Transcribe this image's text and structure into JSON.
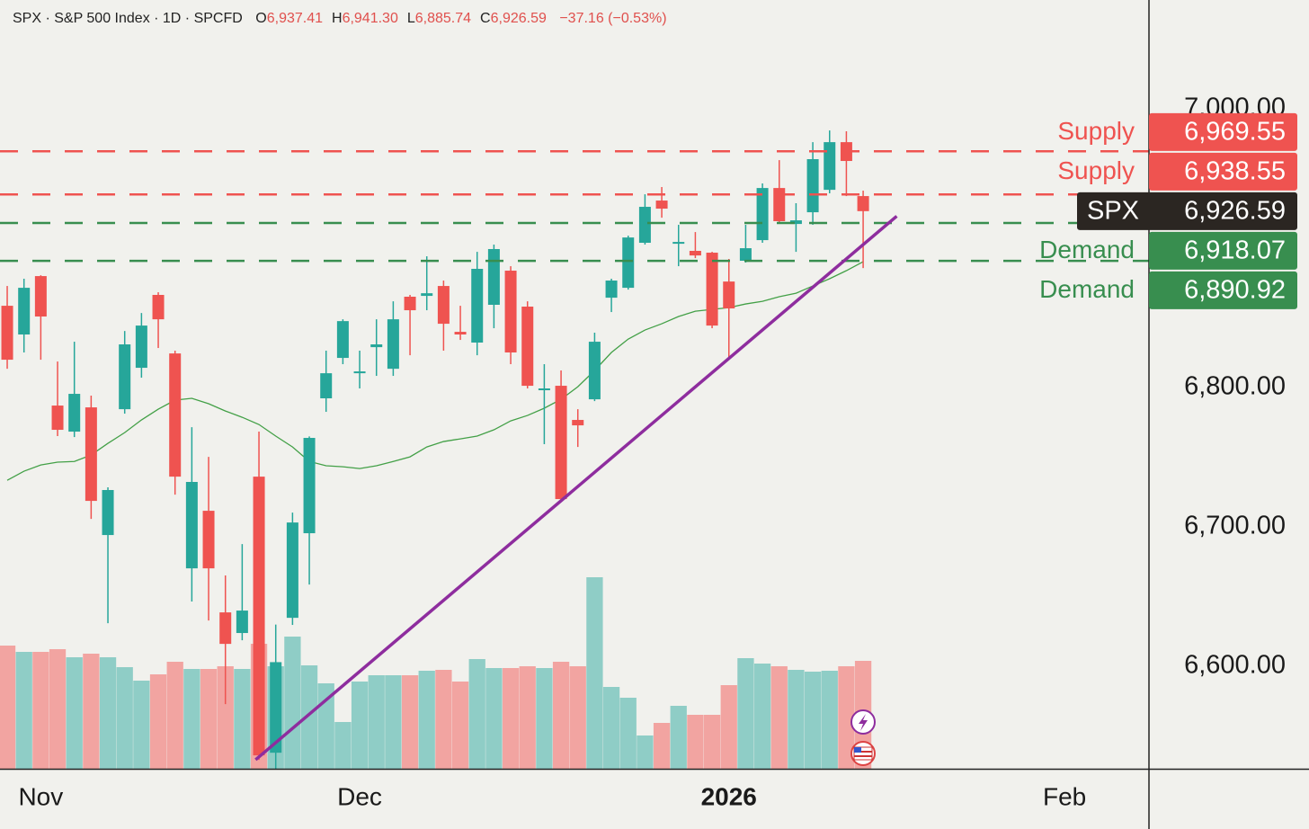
{
  "header": {
    "title": "SPX · S&P 500 Index · 1D · SPCFD",
    "fields": [
      {
        "key": "O",
        "value": "6,937.41"
      },
      {
        "key": "H",
        "value": "6,941.30"
      },
      {
        "key": "L",
        "value": "6,885.74"
      },
      {
        "key": "C",
        "value": "6,926.59"
      }
    ],
    "change": "−37.16 (−0.53%)"
  },
  "chart_data": {
    "type": "candlestick",
    "open": [
      6858.7,
      6838.1,
      6880.0,
      6787.1,
      6768.4,
      6785.8,
      6694.2,
      6784.5,
      6814.2,
      6866.5,
      6824.5,
      6670.3,
      6711.6,
      6638.7,
      6623.9,
      6736.1,
      6538.0,
      6634.8,
      6695.5,
      6792.3,
      6821.3,
      6810.3,
      6829.0,
      6813.5,
      6865.2,
      6865.8,
      6872.9,
      6840.0,
      6832.3,
      6859.4,
      6883.9,
      6858.1,
      6798.1,
      6801.3,
      6776.8,
      6791.6,
      6864.5,
      6871.6,
      6903.9,
      6934.2,
      6903.2,
      6898.1,
      6896.8,
      6876.1,
      6891.0,
      6905.8,
      6943.2,
      6917.4,
      6925.8,
      6941.9,
      6976.1,
      6937.41
    ],
    "high": [
      6872.9,
      6878.1,
      6880.6,
      6818.7,
      6832.9,
      6794.2,
      6728.4,
      6840.6,
      6853.5,
      6868.4,
      6826.5,
      6771.6,
      6750.3,
      6665.2,
      6687.7,
      6768.4,
      6630.0,
      6710.3,
      6765.0,
      6826.5,
      6849.0,
      6826.5,
      6849.0,
      6861.9,
      6866.5,
      6894.2,
      6876.8,
      6858.7,
      6897.4,
      6902.6,
      6887.1,
      6861.9,
      6816.8,
      6812.3,
      6784.5,
      6839.4,
      6878.1,
      6909.0,
      6938.7,
      6943.9,
      6916.8,
      6911.6,
      6897.4,
      6892.3,
      6916.8,
      6946.5,
      6963.2,
      6932.3,
      6976.1,
      6984.5,
      6983.9,
      6941.3
    ],
    "low": [
      6813.5,
      6825.2,
      6820.0,
      6765.2,
      6764.5,
      6705.8,
      6630.9,
      6781.3,
      6807.1,
      6828.4,
      6723.2,
      6646.5,
      6632.9,
      6572.9,
      6618.7,
      6532.9,
      6521.0,
      6629.7,
      6658.7,
      6782.6,
      6816.8,
      6799.4,
      6808.4,
      6808.4,
      6823.2,
      6855.5,
      6826.5,
      6834.2,
      6823.2,
      6842.6,
      6816.8,
      6799.4,
      6759.4,
      6718.1,
      6757.4,
      6790.3,
      6854.2,
      6870.3,
      6902.6,
      6921.9,
      6887.1,
      6892.9,
      6842.6,
      6821.3,
      6889.7,
      6903.9,
      6918.1,
      6897.4,
      6916.8,
      6939.4,
      6937.4,
      6885.74
    ],
    "close": [
      6820.0,
      6871.6,
      6851.0,
      6769.7,
      6795.5,
      6718.7,
      6726.5,
      6831.0,
      6844.5,
      6849.0,
      6736.1,
      6732.3,
      6670.3,
      6616.1,
      6640.0,
      6536.1,
      6603.0,
      6703.2,
      6763.9,
      6810.3,
      6847.7,
      6811.6,
      6831.0,
      6849.0,
      6855.5,
      6867.7,
      6845.8,
      6838.1,
      6885.2,
      6899.4,
      6825.2,
      6801.3,
      6799.4,
      6720.0,
      6772.9,
      6832.9,
      6876.8,
      6907.7,
      6929.7,
      6928.4,
      6904.5,
      6894.8,
      6844.5,
      6856.8,
      6900.0,
      6943.2,
      6919.4,
      6920.0,
      6963.9,
      6976.1,
      6962.6,
      6926.59
    ],
    "volume": [
      54.8,
      52,
      52,
      53.2,
      49.6,
      51.2,
      49.6,
      45.2,
      39.2,
      42,
      47.6,
      44.4,
      44.4,
      45.6,
      44.4,
      55.6,
      45.6,
      58.8,
      46,
      38,
      20.8,
      38.8,
      41.6,
      41.6,
      41.6,
      43.6,
      44,
      38.8,
      48.8,
      44.8,
      44.8,
      45.6,
      44.8,
      47.6,
      45.6,
      85.2,
      36.4,
      31.6,
      14.8,
      20.4,
      28,
      24,
      24,
      37.2,
      49.2,
      46.8,
      45.6,
      44,
      43.2,
      43.6,
      45.6,
      48
    ],
    "volume_lim": [
      0,
      100
    ],
    "ma": [
      6733.5,
      6740,
      6744.5,
      6746.5,
      6747,
      6751.6,
      6760,
      6767.7,
      6776.8,
      6784.5,
      6791,
      6792.3,
      6788.4,
      6783.2,
      6778.7,
      6773.5,
      6765.2,
      6757.4,
      6747,
      6743.9,
      6743.2,
      6741.9,
      6743.9,
      6747,
      6750.3,
      6757.4,
      6761.3,
      6763.2,
      6765.2,
      6769.7,
      6776.1,
      6780,
      6785.2,
      6791.6,
      6800.6,
      6812.3,
      6825.2,
      6834.8,
      6841.3,
      6845.8,
      6851,
      6854.8,
      6856.1,
      6857.4,
      6860,
      6861.9,
      6865.2,
      6867.7,
      6872.9,
      6878.1,
      6883.9,
      6890.3
    ],
    "ma_color": "#43a047",
    "up_color": "#26a69a",
    "down_color": "#ef5350",
    "volume_up_color": "#8fcdc6",
    "volume_down_color": "#f2a4a1",
    "trendline": {
      "x": [
        14.8,
        53.0
      ],
      "y": [
        6533,
        6923
      ],
      "color": "#8e2d9e"
    },
    "xlim": [
      -0.43,
      68.03
    ],
    "xticks": [
      {
        "value": 2,
        "label": "Nov"
      },
      {
        "value": 21,
        "label": "Dec"
      },
      {
        "value": 43,
        "label": "2026"
      },
      {
        "value": 63,
        "label": "Feb"
      }
    ],
    "ylim": [
      6526.5,
      7078.1
    ],
    "yticks": [
      {
        "value": 6600,
        "label": "6,600.00"
      },
      {
        "value": 6700,
        "label": "6,700.00"
      },
      {
        "value": 6800,
        "label": "6,800.00"
      },
      {
        "value": 7000,
        "label": "7,000.00"
      }
    ],
    "levels": [
      {
        "label": "Supply",
        "value": 6969.55,
        "value_label": "6,969.55",
        "color": "#ef5350"
      },
      {
        "label": "Supply",
        "value": 6938.55,
        "value_label": "6,938.55",
        "color": "#ef5350"
      },
      {
        "label": "Demand",
        "value": 6918.07,
        "value_label": "6,918.07",
        "color": "#388e4f"
      },
      {
        "label": "Demand",
        "value": 6890.92,
        "value_label": "6,890.92",
        "color": "#388e4f"
      }
    ],
    "current_price": {
      "label": "SPX",
      "value": 6926.59,
      "value_label": "6,926.59",
      "color": "#2b2622"
    }
  }
}
